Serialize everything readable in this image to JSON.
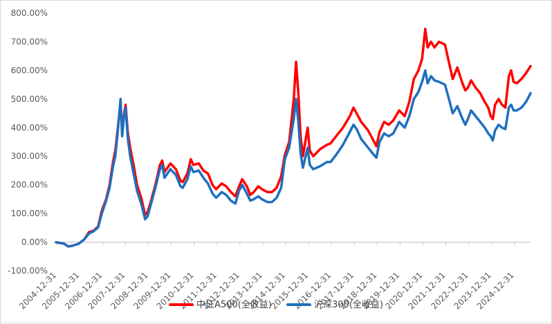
{
  "chart_data": {
    "type": "line",
    "title": "",
    "xlabel": "",
    "ylabel": "",
    "x_tick_labels": [
      "2004-12-31",
      "2005-12-31",
      "2006-12-31",
      "2007-12-31",
      "2008-12-31",
      "2009-12-31",
      "2010-12-31",
      "2011-12-31",
      "2012-12-31",
      "2013-12-31",
      "2014-12-31",
      "2015-12-31",
      "2016-12-31",
      "2017-12-31",
      "2018-12-31",
      "2019-12-31",
      "2020-12-31",
      "2021-12-31",
      "2022-12-31",
      "2023-12-31",
      "2024-12-31"
    ],
    "y_tick_labels": [
      "-100.00%",
      "0.00%",
      "100.00%",
      "200.00%",
      "300.00%",
      "400.00%",
      "500.00%",
      "600.00%",
      "700.00%",
      "800.00%"
    ],
    "ylim": [
      -100,
      800
    ],
    "xlim": [
      2004.96,
      2025.7
    ],
    "y_unit": "%",
    "grid": false,
    "legend_position": "bottom",
    "series": [
      {
        "name": "中证A500(全收益)",
        "color": "#ff0000",
        "points": [
          [
            2004.96,
            0
          ],
          [
            2005.3,
            -5
          ],
          [
            2005.5,
            -15
          ],
          [
            2005.7,
            -12
          ],
          [
            2005.96,
            -5
          ],
          [
            2006.2,
            10
          ],
          [
            2006.4,
            35
          ],
          [
            2006.6,
            40
          ],
          [
            2006.8,
            55
          ],
          [
            2006.96,
            110
          ],
          [
            2007.15,
            150
          ],
          [
            2007.3,
            200
          ],
          [
            2007.45,
            280
          ],
          [
            2007.55,
            320
          ],
          [
            2007.65,
            390
          ],
          [
            2007.78,
            490
          ],
          [
            2007.85,
            380
          ],
          [
            2007.92,
            440
          ],
          [
            2008.0,
            480
          ],
          [
            2008.1,
            380
          ],
          [
            2008.2,
            330
          ],
          [
            2008.35,
            270
          ],
          [
            2008.5,
            200
          ],
          [
            2008.7,
            150
          ],
          [
            2008.85,
            95
          ],
          [
            2008.96,
            105
          ],
          [
            2009.1,
            140
          ],
          [
            2009.3,
            200
          ],
          [
            2009.5,
            270
          ],
          [
            2009.6,
            285
          ],
          [
            2009.7,
            245
          ],
          [
            2009.96,
            275
          ],
          [
            2010.2,
            255
          ],
          [
            2010.4,
            215
          ],
          [
            2010.5,
            210
          ],
          [
            2010.7,
            240
          ],
          [
            2010.85,
            290
          ],
          [
            2010.96,
            270
          ],
          [
            2011.2,
            275
          ],
          [
            2011.4,
            250
          ],
          [
            2011.6,
            240
          ],
          [
            2011.8,
            200
          ],
          [
            2011.96,
            185
          ],
          [
            2012.2,
            205
          ],
          [
            2012.4,
            195
          ],
          [
            2012.6,
            175
          ],
          [
            2012.8,
            160
          ],
          [
            2012.96,
            195
          ],
          [
            2013.1,
            220
          ],
          [
            2013.3,
            195
          ],
          [
            2013.45,
            165
          ],
          [
            2013.6,
            175
          ],
          [
            2013.8,
            195
          ],
          [
            2013.96,
            185
          ],
          [
            2014.2,
            175
          ],
          [
            2014.4,
            175
          ],
          [
            2014.6,
            190
          ],
          [
            2014.8,
            230
          ],
          [
            2014.96,
            305
          ],
          [
            2015.15,
            350
          ],
          [
            2015.35,
            500
          ],
          [
            2015.45,
            630
          ],
          [
            2015.55,
            520
          ],
          [
            2015.65,
            370
          ],
          [
            2015.75,
            300
          ],
          [
            2015.96,
            400
          ],
          [
            2016.05,
            320
          ],
          [
            2016.2,
            300
          ],
          [
            2016.5,
            325
          ],
          [
            2016.8,
            340
          ],
          [
            2016.96,
            345
          ],
          [
            2017.2,
            370
          ],
          [
            2017.5,
            400
          ],
          [
            2017.8,
            440
          ],
          [
            2017.96,
            470
          ],
          [
            2018.1,
            450
          ],
          [
            2018.3,
            420
          ],
          [
            2018.6,
            390
          ],
          [
            2018.8,
            360
          ],
          [
            2018.96,
            335
          ],
          [
            2019.1,
            385
          ],
          [
            2019.3,
            420
          ],
          [
            2019.5,
            410
          ],
          [
            2019.7,
            425
          ],
          [
            2019.96,
            460
          ],
          [
            2020.2,
            440
          ],
          [
            2020.4,
            490
          ],
          [
            2020.6,
            570
          ],
          [
            2020.8,
            600
          ],
          [
            2020.96,
            640
          ],
          [
            2021.1,
            745
          ],
          [
            2021.2,
            680
          ],
          [
            2021.35,
            700
          ],
          [
            2021.5,
            680
          ],
          [
            2021.7,
            700
          ],
          [
            2021.96,
            690
          ],
          [
            2022.1,
            640
          ],
          [
            2022.3,
            570
          ],
          [
            2022.5,
            610
          ],
          [
            2022.7,
            560
          ],
          [
            2022.85,
            530
          ],
          [
            2022.96,
            540
          ],
          [
            2023.1,
            565
          ],
          [
            2023.3,
            540
          ],
          [
            2023.5,
            520
          ],
          [
            2023.7,
            490
          ],
          [
            2023.85,
            470
          ],
          [
            2023.96,
            440
          ],
          [
            2024.05,
            430
          ],
          [
            2024.15,
            480
          ],
          [
            2024.3,
            500
          ],
          [
            2024.45,
            480
          ],
          [
            2024.6,
            470
          ],
          [
            2024.75,
            580
          ],
          [
            2024.85,
            600
          ],
          [
            2024.96,
            560
          ],
          [
            2025.1,
            555
          ],
          [
            2025.3,
            570
          ],
          [
            2025.5,
            590
          ],
          [
            2025.7,
            615
          ]
        ]
      },
      {
        "name": "沪深300(全收益)",
        "color": "#1f6fbf",
        "points": [
          [
            2004.96,
            0
          ],
          [
            2005.3,
            -5
          ],
          [
            2005.5,
            -15
          ],
          [
            2005.7,
            -12
          ],
          [
            2005.96,
            -5
          ],
          [
            2006.2,
            10
          ],
          [
            2006.4,
            30
          ],
          [
            2006.6,
            38
          ],
          [
            2006.8,
            52
          ],
          [
            2006.96,
            100
          ],
          [
            2007.15,
            145
          ],
          [
            2007.3,
            190
          ],
          [
            2007.45,
            265
          ],
          [
            2007.55,
            300
          ],
          [
            2007.65,
            380
          ],
          [
            2007.78,
            500
          ],
          [
            2007.85,
            370
          ],
          [
            2007.92,
            430
          ],
          [
            2008.0,
            470
          ],
          [
            2008.1,
            360
          ],
          [
            2008.2,
            300
          ],
          [
            2008.35,
            240
          ],
          [
            2008.5,
            180
          ],
          [
            2008.7,
            130
          ],
          [
            2008.85,
            80
          ],
          [
            2008.96,
            90
          ],
          [
            2009.1,
            130
          ],
          [
            2009.3,
            190
          ],
          [
            2009.5,
            255
          ],
          [
            2009.6,
            270
          ],
          [
            2009.7,
            225
          ],
          [
            2009.96,
            255
          ],
          [
            2010.2,
            235
          ],
          [
            2010.4,
            195
          ],
          [
            2010.5,
            190
          ],
          [
            2010.7,
            220
          ],
          [
            2010.85,
            265
          ],
          [
            2010.96,
            245
          ],
          [
            2011.2,
            250
          ],
          [
            2011.4,
            225
          ],
          [
            2011.6,
            205
          ],
          [
            2011.8,
            170
          ],
          [
            2011.96,
            155
          ],
          [
            2012.2,
            175
          ],
          [
            2012.4,
            165
          ],
          [
            2012.6,
            145
          ],
          [
            2012.8,
            135
          ],
          [
            2012.96,
            180
          ],
          [
            2013.1,
            200
          ],
          [
            2013.3,
            170
          ],
          [
            2013.45,
            145
          ],
          [
            2013.6,
            150
          ],
          [
            2013.8,
            160
          ],
          [
            2013.96,
            150
          ],
          [
            2014.2,
            140
          ],
          [
            2014.4,
            140
          ],
          [
            2014.6,
            155
          ],
          [
            2014.8,
            190
          ],
          [
            2014.96,
            290
          ],
          [
            2015.15,
            330
          ],
          [
            2015.35,
            430
          ],
          [
            2015.45,
            500
          ],
          [
            2015.55,
            420
          ],
          [
            2015.65,
            310
          ],
          [
            2015.75,
            260
          ],
          [
            2015.96,
            330
          ],
          [
            2016.05,
            270
          ],
          [
            2016.2,
            255
          ],
          [
            2016.5,
            265
          ],
          [
            2016.8,
            280
          ],
          [
            2016.96,
            280
          ],
          [
            2017.2,
            305
          ],
          [
            2017.5,
            340
          ],
          [
            2017.8,
            385
          ],
          [
            2017.96,
            410
          ],
          [
            2018.1,
            395
          ],
          [
            2018.3,
            360
          ],
          [
            2018.6,
            330
          ],
          [
            2018.8,
            310
          ],
          [
            2018.96,
            295
          ],
          [
            2019.1,
            350
          ],
          [
            2019.3,
            380
          ],
          [
            2019.5,
            370
          ],
          [
            2019.7,
            380
          ],
          [
            2019.96,
            420
          ],
          [
            2020.2,
            400
          ],
          [
            2020.4,
            440
          ],
          [
            2020.6,
            500
          ],
          [
            2020.8,
            525
          ],
          [
            2020.96,
            560
          ],
          [
            2021.1,
            600
          ],
          [
            2021.2,
            555
          ],
          [
            2021.35,
            580
          ],
          [
            2021.5,
            565
          ],
          [
            2021.7,
            560
          ],
          [
            2021.96,
            550
          ],
          [
            2022.1,
            510
          ],
          [
            2022.3,
            450
          ],
          [
            2022.5,
            475
          ],
          [
            2022.7,
            435
          ],
          [
            2022.85,
            410
          ],
          [
            2022.96,
            430
          ],
          [
            2023.1,
            460
          ],
          [
            2023.3,
            440
          ],
          [
            2023.5,
            420
          ],
          [
            2023.7,
            400
          ],
          [
            2023.85,
            380
          ],
          [
            2023.96,
            370
          ],
          [
            2024.05,
            355
          ],
          [
            2024.15,
            390
          ],
          [
            2024.3,
            410
          ],
          [
            2024.45,
            400
          ],
          [
            2024.6,
            395
          ],
          [
            2024.75,
            470
          ],
          [
            2024.85,
            480
          ],
          [
            2024.96,
            460
          ],
          [
            2025.1,
            460
          ],
          [
            2025.3,
            470
          ],
          [
            2025.5,
            490
          ],
          [
            2025.7,
            520
          ]
        ]
      }
    ]
  }
}
